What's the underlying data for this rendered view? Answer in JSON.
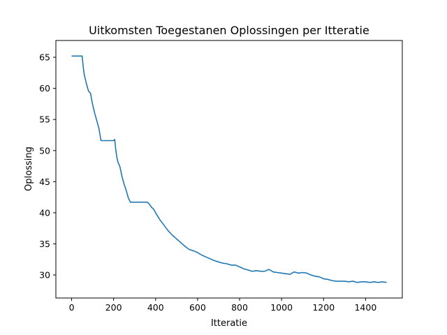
{
  "chart_data": {
    "type": "line",
    "title": "Uitkomsten Toegestanen Oplossingen per Itteratie",
    "xlabel": "Itteratie",
    "ylabel": "Oplossing",
    "xlim": [
      -75,
      1575
    ],
    "ylim": [
      26.3,
      67.7
    ],
    "xticks": [
      0,
      200,
      400,
      600,
      800,
      1000,
      1200,
      1400
    ],
    "yticks": [
      30,
      35,
      40,
      45,
      50,
      55,
      60,
      65
    ],
    "grid": false,
    "legend": "none",
    "color": "#1f77b4",
    "series": [
      {
        "x": [
          0,
          50,
          55,
          60,
          70,
          80,
          90,
          100,
          110,
          120,
          130,
          140,
          150,
          160,
          170,
          180,
          190,
          200,
          205,
          210,
          215,
          220,
          230,
          240,
          250,
          260,
          270,
          280,
          300,
          320,
          340,
          360,
          370,
          380,
          390,
          400,
          420,
          440,
          460,
          480,
          500,
          520,
          540,
          560,
          580,
          600,
          620,
          640,
          660,
          680,
          700,
          720,
          740,
          760,
          780,
          800,
          820,
          840,
          860,
          880,
          900,
          920,
          940,
          960,
          980,
          1000,
          1020,
          1040,
          1060,
          1080,
          1100,
          1120,
          1140,
          1160,
          1180,
          1200,
          1220,
          1240,
          1260,
          1280,
          1300,
          1320,
          1340,
          1360,
          1380,
          1400,
          1420,
          1440,
          1460,
          1480,
          1500
        ],
        "y": [
          65.2,
          65.2,
          63.5,
          62.2,
          60.8,
          59.6,
          59.2,
          57.4,
          56.0,
          54.8,
          53.6,
          51.6,
          51.6,
          51.6,
          51.6,
          51.6,
          51.6,
          51.6,
          51.8,
          50.2,
          49.0,
          48.2,
          47.4,
          45.8,
          44.6,
          43.6,
          42.4,
          41.7,
          41.7,
          41.7,
          41.7,
          41.7,
          41.4,
          40.9,
          40.6,
          40.0,
          38.9,
          38.0,
          37.1,
          36.4,
          35.8,
          35.2,
          34.6,
          34.1,
          33.9,
          33.6,
          33.2,
          32.9,
          32.6,
          32.3,
          32.1,
          31.9,
          31.8,
          31.6,
          31.6,
          31.3,
          31.0,
          30.8,
          30.6,
          30.7,
          30.6,
          30.6,
          30.9,
          30.5,
          30.4,
          30.3,
          30.2,
          30.1,
          30.5,
          30.3,
          30.4,
          30.3,
          30.0,
          29.8,
          29.7,
          29.4,
          29.3,
          29.1,
          29.0,
          29.0,
          29.0,
          28.9,
          29.0,
          28.8,
          28.9,
          28.9,
          28.8,
          28.9,
          28.8,
          28.9,
          28.8
        ]
      }
    ]
  }
}
